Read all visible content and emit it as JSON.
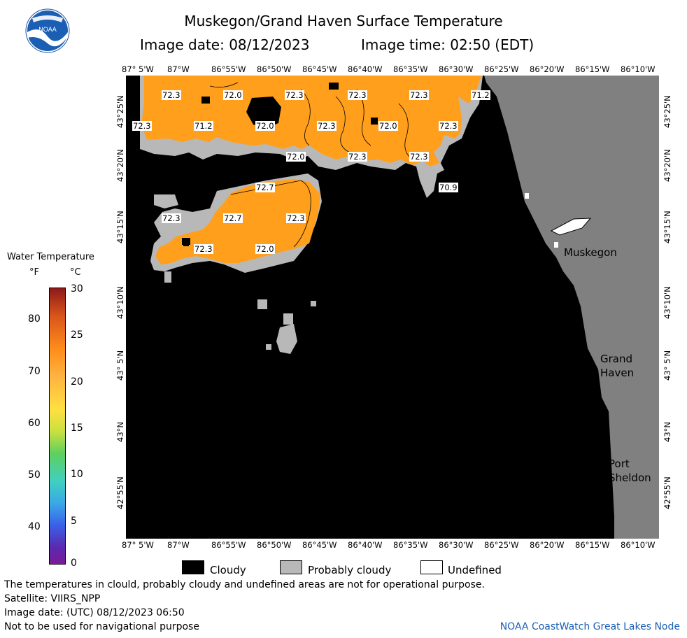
{
  "title": "Muskegon/Grand Haven Surface Temperature",
  "image_date_label": "Image date: 08/12/2023",
  "image_time_label": "Image time: 02:50 (EDT)",
  "logo_text": "NOAA",
  "lon_ticks": [
    "87° 5'W",
    "87°W",
    "86°55'W",
    "86°50'W",
    "86°45'W",
    "86°40'W",
    "86°35'W",
    "86°30'W",
    "86°25'W",
    "86°20'W",
    "86°15'W",
    "86°10'W"
  ],
  "lat_ticks": [
    "43°25'N",
    "43°20'N",
    "43°15'N",
    "43°10'N",
    "43° 5'N",
    "43°N",
    "42°55'N"
  ],
  "places": {
    "muskegon": "Muskegon",
    "grand_haven_1": "Grand",
    "grand_haven_2": "Haven",
    "port_sheldon_1": "Port",
    "port_sheldon_2": "Sheldon"
  },
  "temps": [
    {
      "text": "72.3"
    },
    {
      "text": "72.0"
    },
    {
      "text": "72.3"
    },
    {
      "text": "72.3"
    },
    {
      "text": "72.3"
    },
    {
      "text": "71.2"
    },
    {
      "text": "72.3"
    },
    {
      "text": "71.2"
    },
    {
      "text": "72.0"
    },
    {
      "text": "72.3"
    },
    {
      "text": "72.0"
    },
    {
      "text": "72.3"
    },
    {
      "text": "72.0"
    },
    {
      "text": "72.3"
    },
    {
      "text": "72.3"
    },
    {
      "text": "70.9"
    },
    {
      "text": "72.7"
    },
    {
      "text": "72.3"
    },
    {
      "text": "72.7"
    },
    {
      "text": "72.3"
    },
    {
      "text": "72.3"
    },
    {
      "text": "72.0"
    }
  ],
  "colorbar": {
    "title": "Water Temperature",
    "unit_f": "°F",
    "unit_c": "°C",
    "f_values": [
      "80",
      "70",
      "60",
      "50",
      "40"
    ],
    "c_values": [
      "30",
      "25",
      "20",
      "15",
      "10",
      "5",
      "0"
    ]
  },
  "legend": {
    "cloudy": "Cloudy",
    "probably_cloudy": "Probably cloudy",
    "undefined": "Undefined"
  },
  "colors": {
    "water_orange": "#ff9f1c",
    "cloudy": "#000000",
    "probably_cloudy": "#b8b8b8",
    "land": "#808080",
    "undefined": "#ffffff"
  },
  "footer": {
    "disclaimer": "The temperatures in clould, probably cloudy and undefined areas are not for operational purpose.",
    "satellite": "Satellite: VIIRS_NPP",
    "image_date_utc": "Image date: (UTC) 08/12/2023  06:50",
    "nav_warning": "Not to be used for navigational purpose",
    "credit": "NOAA CoastWatch Great Lakes Node"
  }
}
